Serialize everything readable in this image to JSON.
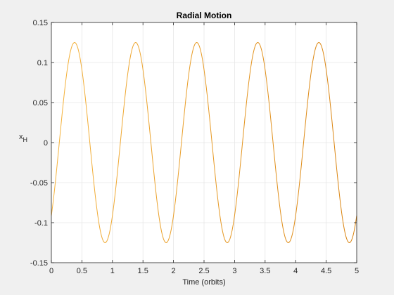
{
  "chart_data": {
    "type": "line",
    "title": "Radial Motion",
    "xlabel": "Time (orbits)",
    "ylabel": "x",
    "ylabel_subscript": "H",
    "xlim": [
      0,
      5
    ],
    "ylim": [
      -0.15,
      0.15
    ],
    "xticks": [
      "0",
      "0.5",
      "1",
      "1.5",
      "2",
      "2.5",
      "3",
      "3.5",
      "4",
      "4.5",
      "5"
    ],
    "yticks": [
      "0.15",
      "0.1",
      "0.05",
      "0",
      "-0.05",
      "-0.1",
      "-0.15"
    ],
    "grid": true,
    "series": [
      {
        "color": "#f0a020",
        "function": "amplitude * sin(2*pi*(t - 0.13))",
        "amplitude": 0.125,
        "frequency_cycles_per_orbit": 1,
        "first_peak_t": 0.38,
        "first_trough_t": 0.88,
        "start_value": -0.087,
        "end_value": -0.087
      }
    ]
  },
  "colors": {
    "figure_background": "#f0f0f0",
    "axes_background": "#ffffff",
    "grid": "#e6e6e6",
    "axes_line": "#262626",
    "line_light": "#f5b33c",
    "line_dark": "#d9820e"
  }
}
